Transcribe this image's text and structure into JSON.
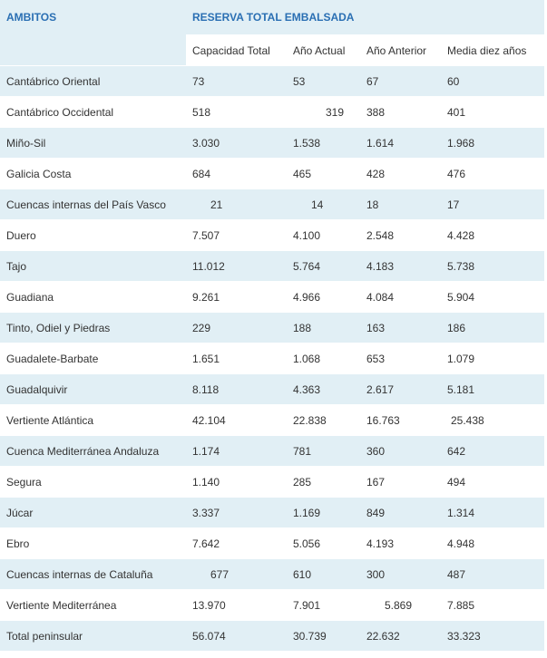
{
  "header": {
    "ambitos": "AMBITOS",
    "group": "RESERVA TOTAL EMBALSADA",
    "columns": [
      "Capacidad Total",
      "Año Actual",
      "Año Anterior",
      "Media diez años"
    ]
  },
  "rows": [
    {
      "name": "Cantábrico Oriental",
      "values": [
        "73",
        "53",
        "67",
        "60"
      ]
    },
    {
      "name": "Cantábrico Occidental",
      "values": [
        "518",
        "319",
        "388",
        "401"
      ]
    },
    {
      "name": "Miño-Sil",
      "values": [
        "3.030",
        "1.538",
        "1.614",
        "1.968"
      ]
    },
    {
      "name": "Galicia Costa",
      "values": [
        "684",
        "465",
        "428",
        "476"
      ]
    },
    {
      "name": "Cuencas internas del País Vasco",
      "values": [
        "21",
        "14",
        "18",
        "17"
      ]
    },
    {
      "name": "Duero",
      "values": [
        "7.507",
        "4.100",
        "2.548",
        "4.428"
      ]
    },
    {
      "name": "Tajo",
      "values": [
        "11.012",
        "5.764",
        "4.183",
        "5.738"
      ]
    },
    {
      "name": "Guadiana",
      "values": [
        "9.261",
        "4.966",
        "4.084",
        "5.904"
      ]
    },
    {
      "name": "Tinto, Odiel y Piedras",
      "values": [
        "229",
        "188",
        "163",
        "186"
      ]
    },
    {
      "name": "Guadalete-Barbate",
      "values": [
        "1.651",
        "1.068",
        "653",
        "1.079"
      ]
    },
    {
      "name": "Guadalquivir",
      "values": [
        "8.118",
        "4.363",
        "2.617",
        "5.181"
      ]
    },
    {
      "name": "Vertiente Atlántica",
      "values": [
        "42.104",
        "22.838",
        "16.763",
        "25.438"
      ]
    },
    {
      "name": "Cuenca Mediterránea Andaluza",
      "values": [
        "1.174",
        "781",
        "360",
        "642"
      ]
    },
    {
      "name": "Segura",
      "values": [
        "1.140",
        "285",
        "167",
        "494"
      ]
    },
    {
      "name": "Júcar",
      "values": [
        "3.337",
        "1.169",
        "849",
        "1.314"
      ]
    },
    {
      "name": "Ebro",
      "values": [
        "7.642",
        "5.056",
        "4.193",
        "4.948"
      ]
    },
    {
      "name": "Cuencas internas de Cataluña",
      "values": [
        "677",
        "610",
        "300",
        "487"
      ]
    },
    {
      "name": "Vertiente Mediterránea",
      "values": [
        "13.970",
        "7.901",
        "5.869",
        "7.885"
      ]
    },
    {
      "name": "Total peninsular",
      "values": [
        "56.074",
        "30.739",
        "22.632",
        "33.323"
      ]
    }
  ]
}
